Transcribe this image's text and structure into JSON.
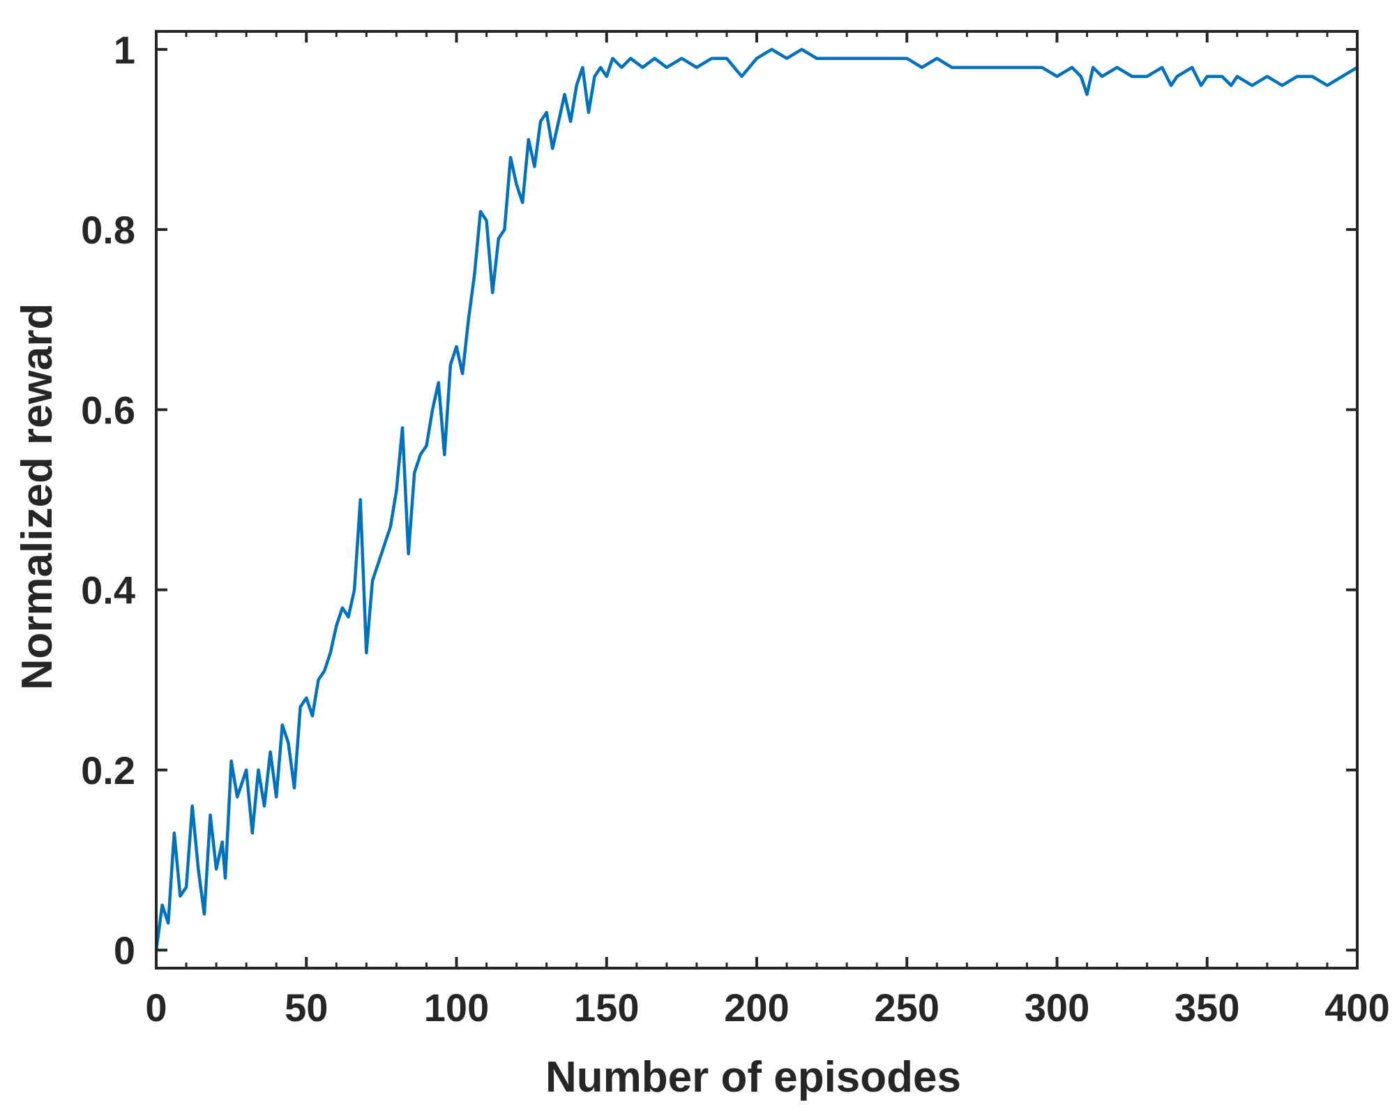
{
  "chart_data": {
    "type": "line",
    "title": "",
    "xlabel": "Number of episodes",
    "ylabel": "Normalized reward",
    "xlim": [
      0,
      400
    ],
    "ylim": [
      -0.02,
      1.02
    ],
    "xticks": [
      0,
      50,
      100,
      150,
      200,
      250,
      300,
      350,
      400
    ],
    "xtick_labels": [
      "0",
      "50",
      "100",
      "150",
      "200",
      "250",
      "300",
      "350",
      "400"
    ],
    "yticks": [
      0,
      0.2,
      0.4,
      0.6,
      0.8,
      1
    ],
    "ytick_labels": [
      "0",
      "0.2",
      "0.4",
      "0.6",
      "0.8",
      "1"
    ],
    "grid": false,
    "legend": "none",
    "series": [
      {
        "color": "#0072BD",
        "points": [
          [
            0,
            0.0
          ],
          [
            2,
            0.05
          ],
          [
            4,
            0.03
          ],
          [
            6,
            0.13
          ],
          [
            8,
            0.06
          ],
          [
            10,
            0.07
          ],
          [
            12,
            0.16
          ],
          [
            14,
            0.09
          ],
          [
            16,
            0.04
          ],
          [
            18,
            0.15
          ],
          [
            20,
            0.09
          ],
          [
            22,
            0.12
          ],
          [
            23,
            0.08
          ],
          [
            25,
            0.21
          ],
          [
            27,
            0.17
          ],
          [
            30,
            0.2
          ],
          [
            32,
            0.13
          ],
          [
            34,
            0.2
          ],
          [
            36,
            0.16
          ],
          [
            38,
            0.22
          ],
          [
            40,
            0.17
          ],
          [
            42,
            0.25
          ],
          [
            44,
            0.23
          ],
          [
            46,
            0.18
          ],
          [
            48,
            0.27
          ],
          [
            50,
            0.28
          ],
          [
            52,
            0.26
          ],
          [
            54,
            0.3
          ],
          [
            56,
            0.31
          ],
          [
            58,
            0.33
          ],
          [
            60,
            0.36
          ],
          [
            62,
            0.38
          ],
          [
            64,
            0.37
          ],
          [
            66,
            0.4
          ],
          [
            68,
            0.5
          ],
          [
            70,
            0.33
          ],
          [
            72,
            0.41
          ],
          [
            74,
            0.43
          ],
          [
            76,
            0.45
          ],
          [
            78,
            0.47
          ],
          [
            80,
            0.51
          ],
          [
            82,
            0.58
          ],
          [
            84,
            0.44
          ],
          [
            86,
            0.53
          ],
          [
            88,
            0.55
          ],
          [
            90,
            0.56
          ],
          [
            92,
            0.6
          ],
          [
            94,
            0.63
          ],
          [
            96,
            0.55
          ],
          [
            98,
            0.65
          ],
          [
            100,
            0.67
          ],
          [
            102,
            0.64
          ],
          [
            104,
            0.7
          ],
          [
            106,
            0.75
          ],
          [
            108,
            0.82
          ],
          [
            110,
            0.81
          ],
          [
            112,
            0.73
          ],
          [
            114,
            0.79
          ],
          [
            116,
            0.8
          ],
          [
            118,
            0.88
          ],
          [
            120,
            0.85
          ],
          [
            122,
            0.83
          ],
          [
            124,
            0.9
          ],
          [
            126,
            0.87
          ],
          [
            128,
            0.92
          ],
          [
            130,
            0.93
          ],
          [
            132,
            0.89
          ],
          [
            134,
            0.92
          ],
          [
            136,
            0.95
          ],
          [
            138,
            0.92
          ],
          [
            140,
            0.96
          ],
          [
            142,
            0.98
          ],
          [
            144,
            0.93
          ],
          [
            146,
            0.97
          ],
          [
            148,
            0.98
          ],
          [
            150,
            0.97
          ],
          [
            152,
            0.99
          ],
          [
            155,
            0.98
          ],
          [
            158,
            0.99
          ],
          [
            162,
            0.98
          ],
          [
            166,
            0.99
          ],
          [
            170,
            0.98
          ],
          [
            175,
            0.99
          ],
          [
            180,
            0.98
          ],
          [
            185,
            0.99
          ],
          [
            190,
            0.99
          ],
          [
            195,
            0.97
          ],
          [
            200,
            0.99
          ],
          [
            205,
            1.0
          ],
          [
            210,
            0.99
          ],
          [
            215,
            1.0
          ],
          [
            220,
            0.99
          ],
          [
            225,
            0.99
          ],
          [
            230,
            0.99
          ],
          [
            235,
            0.99
          ],
          [
            240,
            0.99
          ],
          [
            245,
            0.99
          ],
          [
            250,
            0.99
          ],
          [
            255,
            0.98
          ],
          [
            260,
            0.99
          ],
          [
            265,
            0.98
          ],
          [
            270,
            0.98
          ],
          [
            275,
            0.98
          ],
          [
            280,
            0.98
          ],
          [
            285,
            0.98
          ],
          [
            290,
            0.98
          ],
          [
            295,
            0.98
          ],
          [
            300,
            0.97
          ],
          [
            305,
            0.98
          ],
          [
            308,
            0.97
          ],
          [
            310,
            0.95
          ],
          [
            312,
            0.98
          ],
          [
            315,
            0.97
          ],
          [
            320,
            0.98
          ],
          [
            325,
            0.97
          ],
          [
            330,
            0.97
          ],
          [
            335,
            0.98
          ],
          [
            338,
            0.96
          ],
          [
            340,
            0.97
          ],
          [
            345,
            0.98
          ],
          [
            348,
            0.96
          ],
          [
            350,
            0.97
          ],
          [
            355,
            0.97
          ],
          [
            358,
            0.96
          ],
          [
            360,
            0.97
          ],
          [
            365,
            0.96
          ],
          [
            370,
            0.97
          ],
          [
            375,
            0.96
          ],
          [
            380,
            0.97
          ],
          [
            385,
            0.97
          ],
          [
            390,
            0.96
          ],
          [
            395,
            0.97
          ],
          [
            400,
            0.98
          ]
        ]
      }
    ]
  }
}
